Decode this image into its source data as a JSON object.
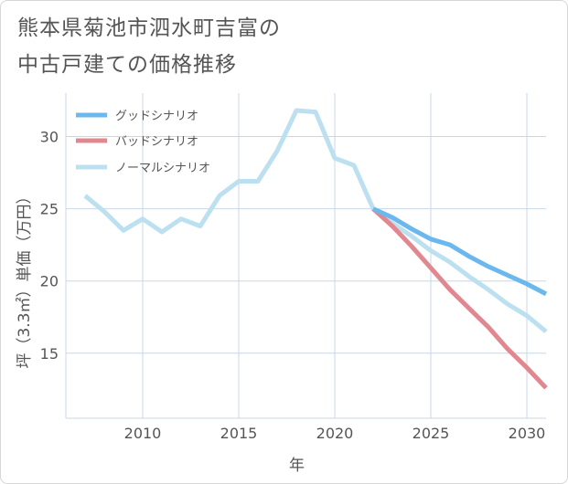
{
  "title_line1": "熊本県菊池市泗水町吉富の",
  "title_line2": "中古戸建ての価格推移",
  "colors": {
    "good": "#6bb8ef",
    "bad": "#e0888f",
    "normal": "#bde0f0",
    "grid": "#c8d7e6",
    "axis": "#555555"
  },
  "chart_data": {
    "type": "line",
    "xlabel": "年",
    "ylabel": "坪（3.3㎡）単価（万円）",
    "xlim": [
      2006,
      2031
    ],
    "ylim": [
      10.5,
      33
    ],
    "x_ticks": [
      2010,
      2015,
      2020,
      2025,
      2030
    ],
    "y_ticks": [
      15,
      20,
      25,
      30
    ],
    "grid": true,
    "legend_position": "top-left",
    "series": [
      {
        "name": "グッドシナリオ",
        "color": "#6bb8ef",
        "x": [
          2022,
          2023,
          2024,
          2025,
          2026,
          2027,
          2028,
          2029,
          2030,
          2031
        ],
        "y": [
          25.0,
          24.4,
          23.6,
          22.9,
          22.5,
          21.7,
          21.0,
          20.4,
          19.8,
          19.1
        ]
      },
      {
        "name": "バッドシナリオ",
        "color": "#e0888f",
        "x": [
          2022,
          2023,
          2024,
          2025,
          2026,
          2027,
          2028,
          2029,
          2030,
          2031
        ],
        "y": [
          25.0,
          23.8,
          22.4,
          20.9,
          19.4,
          18.1,
          16.8,
          15.3,
          14.0,
          12.6
        ]
      },
      {
        "name": "ノーマルシナリオ",
        "color": "#bde0f0",
        "x": [
          2007,
          2008,
          2009,
          2010,
          2011,
          2012,
          2013,
          2014,
          2015,
          2016,
          2017,
          2018,
          2019,
          2020,
          2021,
          2022,
          2023,
          2024,
          2025,
          2026,
          2027,
          2028,
          2029,
          2030,
          2031
        ],
        "y": [
          25.9,
          24.8,
          23.5,
          24.3,
          23.4,
          24.3,
          23.8,
          25.9,
          26.9,
          26.9,
          29.0,
          31.8,
          31.7,
          28.5,
          28.0,
          25.0,
          24.0,
          23.1,
          22.1,
          21.3,
          20.3,
          19.4,
          18.4,
          17.6,
          16.5
        ]
      }
    ]
  }
}
